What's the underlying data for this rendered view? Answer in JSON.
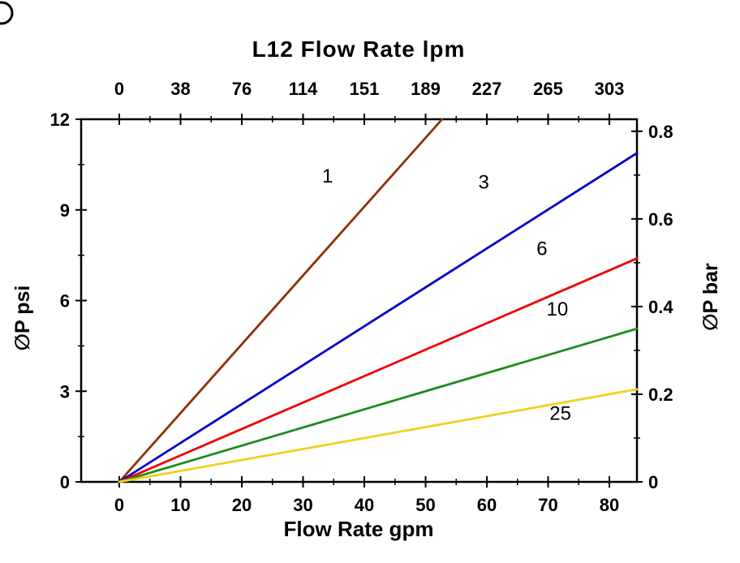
{
  "chart_data": {
    "type": "line",
    "title": "L12 Flow Rate lpm",
    "xlabel": "Flow Rate gpm",
    "ylabel_left": "∅P psi",
    "ylabel_right": "∅P bar",
    "x_bottom_ticks": [
      "0",
      "10",
      "20",
      "30",
      "40",
      "50",
      "60",
      "70",
      "80"
    ],
    "x_top_ticks": [
      "0",
      "38",
      "76",
      "114",
      "151",
      "189",
      "227",
      "265",
      "303"
    ],
    "y_left_ticks": [
      "0",
      "3",
      "6",
      "9",
      "12"
    ],
    "y_right_ticks": [
      "0",
      "0.2",
      "0.4",
      "0.6",
      "0.8"
    ],
    "xlim": [
      0,
      80
    ],
    "ylim_psi": [
      0,
      12
    ],
    "psi_per_bar": 14.5038,
    "grid": false,
    "legend_position": "inline-labels",
    "series": [
      {
        "name": "1",
        "color": "#8B3103",
        "points": [
          [
            0,
            0
          ],
          [
            52.7,
            12
          ]
        ],
        "label_pos": [
          34,
          9.9
        ]
      },
      {
        "name": "3",
        "color": "#0000CC",
        "points": [
          [
            0,
            0
          ],
          [
            80,
            10.3
          ]
        ],
        "label_pos": [
          59.5,
          9.7
        ]
      },
      {
        "name": "6",
        "color": "#EE0000",
        "points": [
          [
            0,
            0
          ],
          [
            80,
            7.0
          ]
        ],
        "label_pos": [
          69,
          7.5
        ]
      },
      {
        "name": "10",
        "color": "#1E8C1E",
        "points": [
          [
            0,
            0
          ],
          [
            80,
            4.8
          ]
        ],
        "label_pos": [
          71.5,
          5.5
        ]
      },
      {
        "name": "25",
        "color": "#F0D020",
        "points": [
          [
            0,
            0
          ],
          [
            80,
            2.9
          ]
        ],
        "label_pos": [
          72,
          2.05
        ]
      }
    ]
  }
}
